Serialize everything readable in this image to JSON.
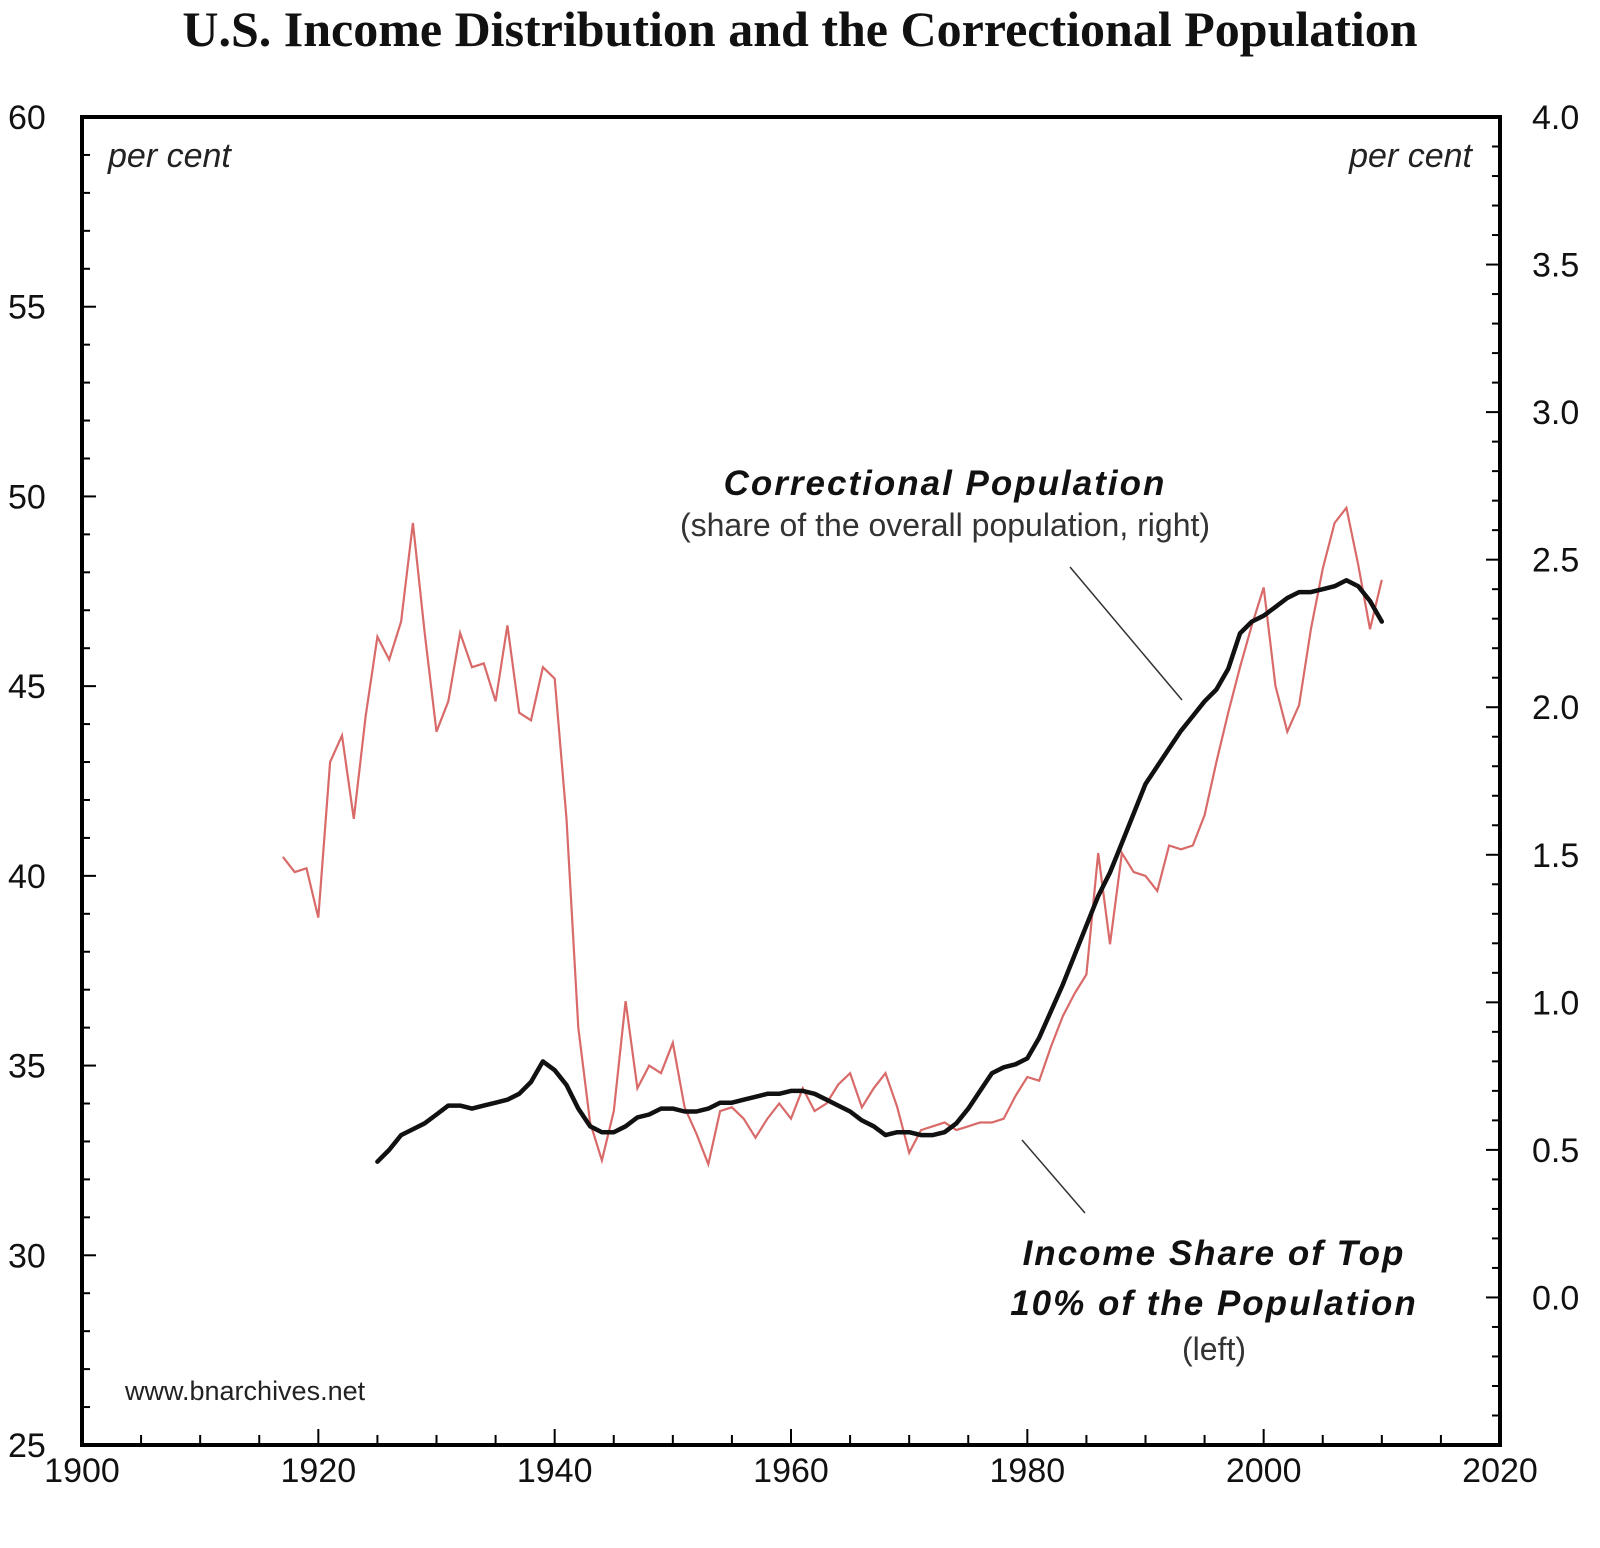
{
  "chart_data": {
    "type": "line",
    "title": "U.S. Income Distribution and the Correctional Population",
    "x_axis": {
      "min": 1900,
      "max": 2020,
      "ticks": [
        1900,
        1920,
        1940,
        1960,
        1980,
        2000,
        2020
      ]
    },
    "y_left": {
      "min": 25,
      "max": 60,
      "unit_label": "per cent",
      "ticks": [
        25,
        30,
        35,
        40,
        45,
        50,
        55,
        60
      ]
    },
    "y_right": {
      "min": -0.5,
      "max": 4.0,
      "unit_label": "per cent",
      "ticks": [
        "0.0",
        "0.5",
        "1.0",
        "1.5",
        "2.0",
        "2.5",
        "3.0",
        "3.5",
        "4.0"
      ]
    },
    "series": [
      {
        "name": "Income Share of Top 10% of the Population (left)",
        "axis": "left",
        "color": "#d96a6a",
        "points": [
          [
            1917,
            40.5
          ],
          [
            1918,
            40.1
          ],
          [
            1919,
            40.2
          ],
          [
            1920,
            38.9
          ],
          [
            1921,
            43.0
          ],
          [
            1922,
            43.7
          ],
          [
            1923,
            41.5
          ],
          [
            1924,
            44.2
          ],
          [
            1925,
            46.3
          ],
          [
            1926,
            45.7
          ],
          [
            1927,
            46.7
          ],
          [
            1928,
            49.3
          ],
          [
            1929,
            46.4
          ],
          [
            1930,
            43.8
          ],
          [
            1931,
            44.6
          ],
          [
            1932,
            46.4
          ],
          [
            1933,
            45.5
          ],
          [
            1934,
            45.6
          ],
          [
            1935,
            44.6
          ],
          [
            1936,
            46.6
          ],
          [
            1937,
            44.3
          ],
          [
            1938,
            44.1
          ],
          [
            1939,
            45.5
          ],
          [
            1940,
            45.2
          ],
          [
            1941,
            41.5
          ],
          [
            1942,
            36.0
          ],
          [
            1943,
            33.5
          ],
          [
            1944,
            32.5
          ],
          [
            1945,
            33.8
          ],
          [
            1946,
            36.7
          ],
          [
            1947,
            34.4
          ],
          [
            1948,
            35.0
          ],
          [
            1949,
            34.8
          ],
          [
            1950,
            35.6
          ],
          [
            1951,
            33.9
          ],
          [
            1952,
            33.2
          ],
          [
            1953,
            32.4
          ],
          [
            1954,
            33.8
          ],
          [
            1955,
            33.9
          ],
          [
            1956,
            33.6
          ],
          [
            1957,
            33.1
          ],
          [
            1958,
            33.6
          ],
          [
            1959,
            34.0
          ],
          [
            1960,
            33.6
          ],
          [
            1961,
            34.4
          ],
          [
            1962,
            33.8
          ],
          [
            1963,
            34.0
          ],
          [
            1964,
            34.5
          ],
          [
            1965,
            34.8
          ],
          [
            1966,
            33.9
          ],
          [
            1967,
            34.4
          ],
          [
            1968,
            34.8
          ],
          [
            1969,
            33.9
          ],
          [
            1970,
            32.7
          ],
          [
            1971,
            33.3
          ],
          [
            1972,
            33.4
          ],
          [
            1973,
            33.5
          ],
          [
            1974,
            33.3
          ],
          [
            1975,
            33.4
          ],
          [
            1976,
            33.5
          ],
          [
            1977,
            33.5
          ],
          [
            1978,
            33.6
          ],
          [
            1979,
            34.2
          ],
          [
            1980,
            34.7
          ],
          [
            1981,
            34.6
          ],
          [
            1982,
            35.5
          ],
          [
            1983,
            36.3
          ],
          [
            1984,
            36.9
          ],
          [
            1985,
            37.4
          ],
          [
            1986,
            40.6
          ],
          [
            1987,
            38.2
          ],
          [
            1988,
            40.6
          ],
          [
            1989,
            40.1
          ],
          [
            1990,
            40.0
          ],
          [
            1991,
            39.6
          ],
          [
            1992,
            40.8
          ],
          [
            1993,
            40.7
          ],
          [
            1994,
            40.8
          ],
          [
            1995,
            41.6
          ],
          [
            1996,
            43.0
          ],
          [
            1997,
            44.3
          ],
          [
            1998,
            45.5
          ],
          [
            1999,
            46.6
          ],
          [
            2000,
            47.6
          ],
          [
            2001,
            45.0
          ],
          [
            2002,
            43.8
          ],
          [
            2003,
            44.5
          ],
          [
            2004,
            46.5
          ],
          [
            2005,
            48.1
          ],
          [
            2006,
            49.3
          ],
          [
            2007,
            49.7
          ],
          [
            2008,
            48.2
          ],
          [
            2009,
            46.5
          ],
          [
            2010,
            47.8
          ]
        ]
      },
      {
        "name": "Correctional Population (share of the overall population, right)",
        "axis": "right",
        "color": "#111111",
        "points": [
          [
            1925,
            0.46
          ],
          [
            1926,
            0.5
          ],
          [
            1927,
            0.55
          ],
          [
            1928,
            0.57
          ],
          [
            1929,
            0.59
          ],
          [
            1930,
            0.62
          ],
          [
            1931,
            0.65
          ],
          [
            1932,
            0.65
          ],
          [
            1933,
            0.64
          ],
          [
            1934,
            0.65
          ],
          [
            1935,
            0.66
          ],
          [
            1936,
            0.67
          ],
          [
            1937,
            0.69
          ],
          [
            1938,
            0.73
          ],
          [
            1939,
            0.8
          ],
          [
            1940,
            0.77
          ],
          [
            1941,
            0.72
          ],
          [
            1942,
            0.64
          ],
          [
            1943,
            0.58
          ],
          [
            1944,
            0.56
          ],
          [
            1945,
            0.56
          ],
          [
            1946,
            0.58
          ],
          [
            1947,
            0.61
          ],
          [
            1948,
            0.62
          ],
          [
            1949,
            0.64
          ],
          [
            1950,
            0.64
          ],
          [
            1951,
            0.63
          ],
          [
            1952,
            0.63
          ],
          [
            1953,
            0.64
          ],
          [
            1954,
            0.66
          ],
          [
            1955,
            0.66
          ],
          [
            1956,
            0.67
          ],
          [
            1957,
            0.68
          ],
          [
            1958,
            0.69
          ],
          [
            1959,
            0.69
          ],
          [
            1960,
            0.7
          ],
          [
            1961,
            0.7
          ],
          [
            1962,
            0.69
          ],
          [
            1963,
            0.67
          ],
          [
            1964,
            0.65
          ],
          [
            1965,
            0.63
          ],
          [
            1966,
            0.6
          ],
          [
            1967,
            0.58
          ],
          [
            1968,
            0.55
          ],
          [
            1969,
            0.56
          ],
          [
            1970,
            0.56
          ],
          [
            1971,
            0.55
          ],
          [
            1972,
            0.55
          ],
          [
            1973,
            0.56
          ],
          [
            1974,
            0.59
          ],
          [
            1975,
            0.64
          ],
          [
            1976,
            0.7
          ],
          [
            1977,
            0.76
          ],
          [
            1978,
            0.78
          ],
          [
            1979,
            0.79
          ],
          [
            1980,
            0.81
          ],
          [
            1981,
            0.88
          ],
          [
            1982,
            0.97
          ],
          [
            1983,
            1.06
          ],
          [
            1984,
            1.16
          ],
          [
            1985,
            1.26
          ],
          [
            1986,
            1.36
          ],
          [
            1987,
            1.44
          ],
          [
            1988,
            1.54
          ],
          [
            1989,
            1.64
          ],
          [
            1990,
            1.74
          ],
          [
            1991,
            1.8
          ],
          [
            1992,
            1.86
          ],
          [
            1993,
            1.92
          ],
          [
            1994,
            1.97
          ],
          [
            1995,
            2.02
          ],
          [
            1996,
            2.06
          ],
          [
            1997,
            2.13
          ],
          [
            1998,
            2.25
          ],
          [
            1999,
            2.29
          ],
          [
            2000,
            2.31
          ],
          [
            2001,
            2.34
          ],
          [
            2002,
            2.37
          ],
          [
            2003,
            2.39
          ],
          [
            2004,
            2.39
          ],
          [
            2005,
            2.4
          ],
          [
            2006,
            2.41
          ],
          [
            2007,
            2.43
          ],
          [
            2008,
            2.41
          ],
          [
            2009,
            2.36
          ],
          [
            2010,
            2.29
          ]
        ]
      }
    ],
    "annotations": {
      "correctional_title": "Correctional Population",
      "correctional_subtitle": "(share of the overall population, right)",
      "income_title_line1": "Income Share of Top",
      "income_title_line2": "10% of the Population",
      "income_subtitle": "(left)"
    },
    "source": "www.bnarchives.net"
  }
}
